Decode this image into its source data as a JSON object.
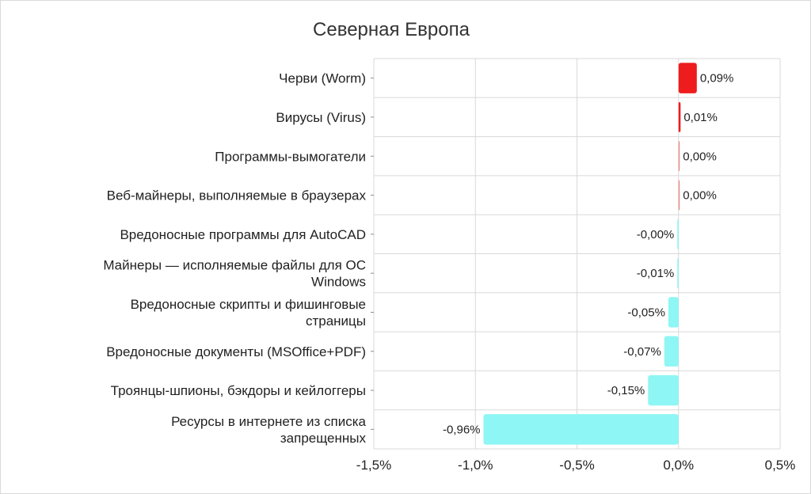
{
  "chart_data": {
    "type": "bar",
    "orientation": "horizontal",
    "title": "Северная Европа",
    "xlabel": "",
    "ylabel": "",
    "xlim": [
      -1.5,
      0.5
    ],
    "x_ticks": [
      -1.5,
      -1.0,
      -0.5,
      0.0,
      0.5
    ],
    "x_tick_labels": [
      "-1,5%",
      "-1,0%",
      "-0,5%",
      "0,0%",
      "0,5%"
    ],
    "grid": true,
    "legend": "none",
    "categories": [
      [
        "Черви (Worm)"
      ],
      [
        "Вирусы (Virus)"
      ],
      [
        "Программы-вымогатели"
      ],
      [
        "Веб-майнеры, выполняемые в браузерах"
      ],
      [
        "Вредоносные программы для AutoCAD"
      ],
      [
        "Майнеры — исполняемые файлы для ОС",
        "Windows"
      ],
      [
        "Вредоносные скрипты и фишинговые",
        "страницы"
      ],
      [
        "Вредоносные документы (MSOffice+PDF)"
      ],
      [
        "Троянцы-шпионы, бэкдоры и кейлоггеры"
      ],
      [
        "Ресурсы в интернете из списка",
        "запрещенных"
      ]
    ],
    "values": [
      0.09,
      0.01,
      0.001,
      0.001,
      -0.001,
      -0.005,
      -0.05,
      -0.07,
      -0.15,
      -0.96
    ],
    "data_labels": [
      "0,09%",
      "0,01%",
      "0,00%",
      "0,00%",
      "-0,00%",
      "-0,01%",
      "-0,05%",
      "-0,07%",
      "-0,15%",
      "-0,96%"
    ],
    "colors": {
      "positive_strong": "#ee1c1c",
      "positive_weak": "#f08b8b",
      "negative": "#8ef6f4",
      "grid": "#d9d9d9",
      "axis": "#8c8c8c"
    }
  }
}
